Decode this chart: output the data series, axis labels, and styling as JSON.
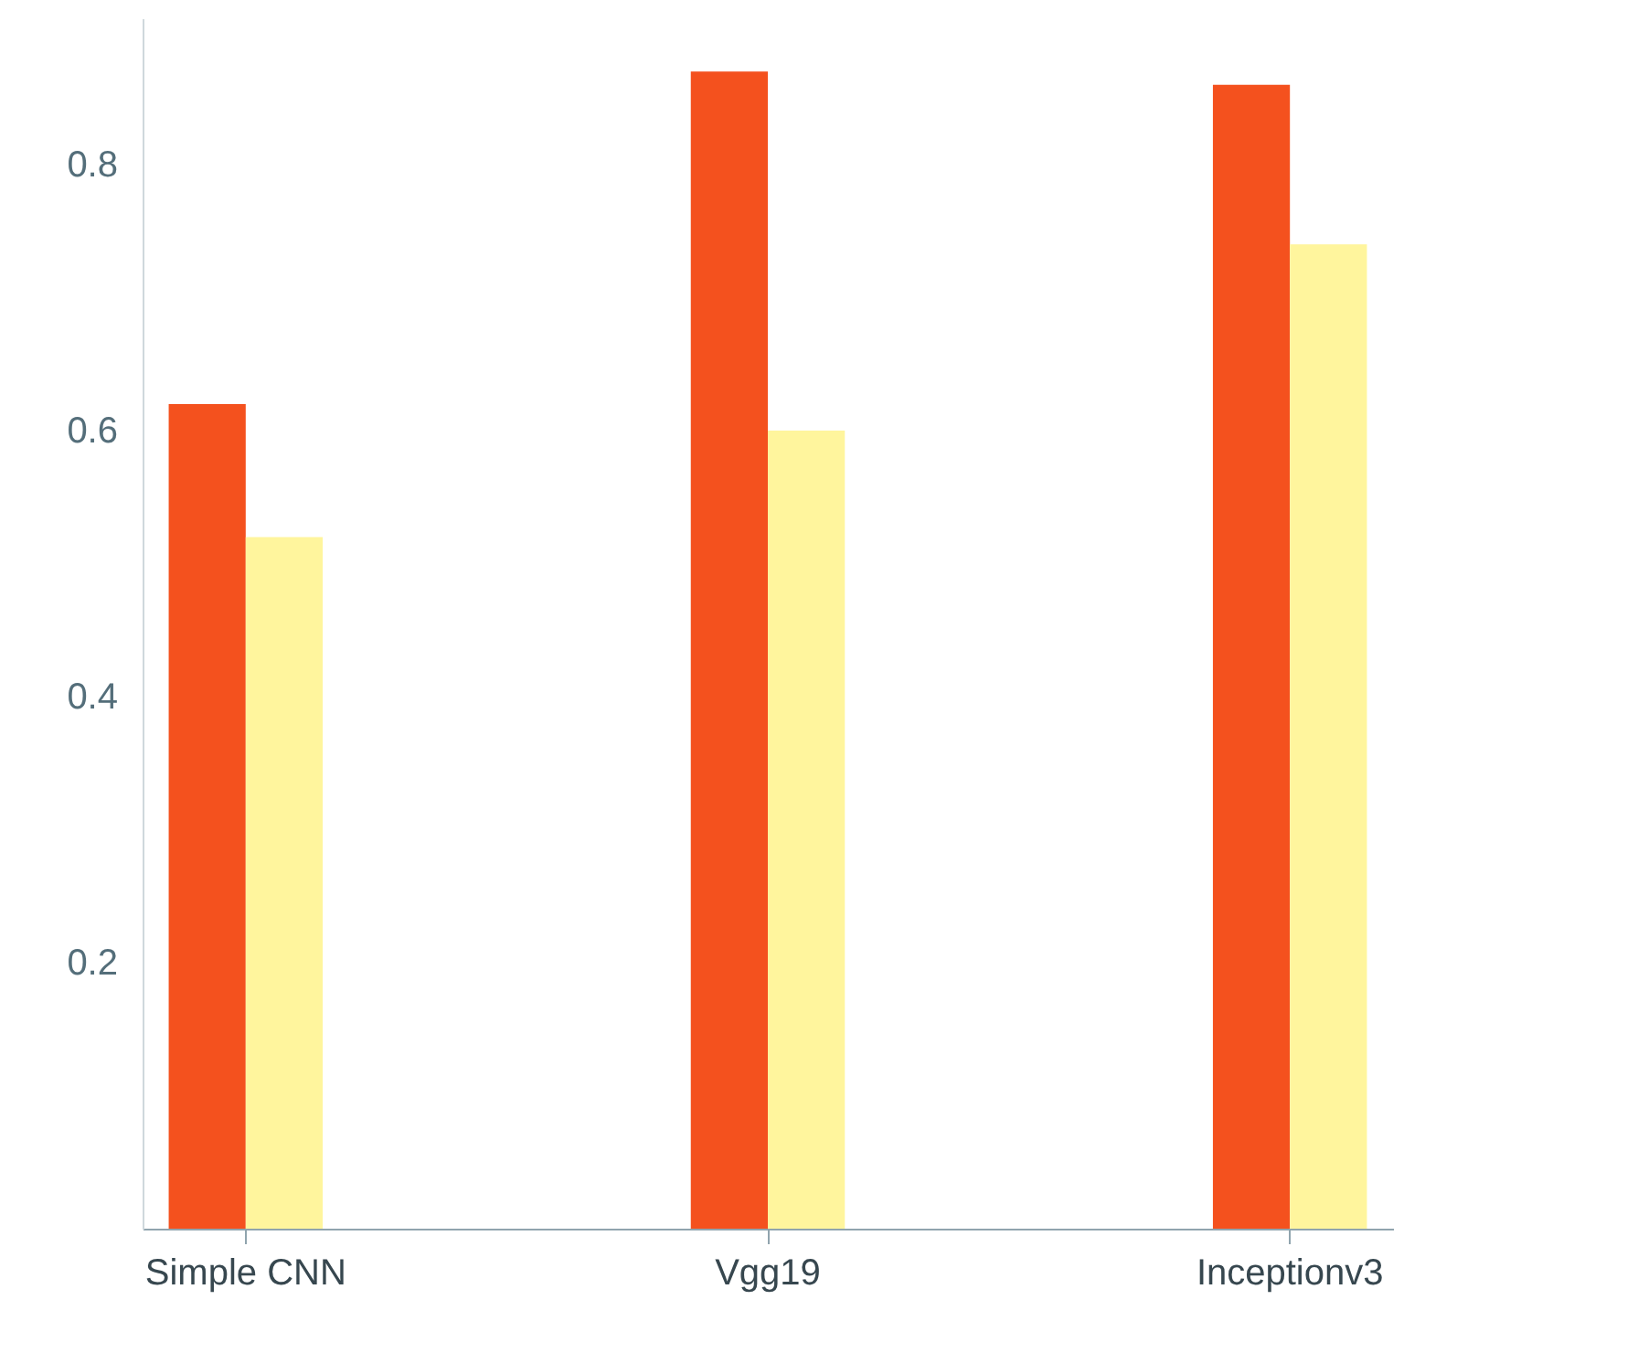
{
  "chart_data": {
    "type": "bar",
    "categories": [
      "Simple CNN",
      "Vgg19",
      "Inceptionv3"
    ],
    "series": [
      {
        "color": "#f4511e",
        "values": [
          0.62,
          0.87,
          0.86
        ]
      },
      {
        "color": "#fff59d",
        "values": [
          0.52,
          0.6,
          0.74
        ]
      }
    ],
    "ylim": [
      0,
      0.91
    ],
    "yticks": [
      0.2,
      0.4,
      0.6,
      0.8
    ],
    "grid": false
  }
}
